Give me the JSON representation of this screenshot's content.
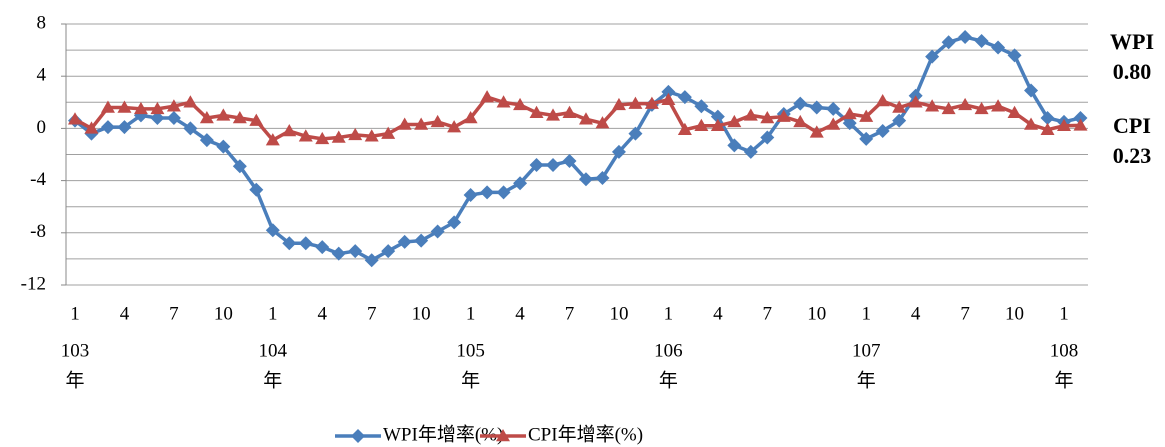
{
  "chart_data": {
    "type": "line",
    "categories": [
      "1",
      null,
      null,
      "4",
      null,
      null,
      "7",
      null,
      null,
      "10",
      null,
      null,
      "1",
      null,
      null,
      "4",
      null,
      null,
      "7",
      null,
      null,
      "10",
      null,
      null,
      "1",
      null,
      null,
      "4",
      null,
      null,
      "7",
      null,
      null,
      "10",
      null,
      null,
      "1",
      null,
      null,
      "4",
      null,
      null,
      "7",
      null,
      null,
      "10",
      null,
      null,
      "1",
      null,
      null,
      "4",
      null,
      null,
      "7",
      null,
      null,
      "10",
      null,
      null,
      "1",
      null
    ],
    "year_labels": [
      "103",
      "104",
      "105",
      "106",
      "107",
      "108"
    ],
    "year_unit": "年",
    "series": [
      {
        "name": "WPI年增率(%)",
        "color": "#4a7ebb",
        "marker": "diamond",
        "values": [
          0.6,
          -0.4,
          0.1,
          0.1,
          1.0,
          0.8,
          0.8,
          0.0,
          -0.9,
          -1.4,
          -2.9,
          -4.7,
          -7.8,
          -8.8,
          -8.8,
          -9.1,
          -9.6,
          -9.4,
          -10.1,
          -9.4,
          -8.7,
          -8.6,
          -7.9,
          -7.2,
          -5.1,
          -4.9,
          -4.9,
          -4.2,
          -2.8,
          -2.8,
          -2.5,
          -3.9,
          -3.8,
          -1.8,
          -0.4,
          1.8,
          2.8,
          2.4,
          1.7,
          0.9,
          -1.3,
          -1.8,
          -0.7,
          1.1,
          1.9,
          1.6,
          1.5,
          0.4,
          -0.8,
          -0.2,
          0.6,
          2.5,
          5.5,
          6.6,
          7.0,
          6.7,
          6.2,
          5.6,
          2.9,
          0.8,
          0.5,
          0.8
        ]
      },
      {
        "name": "CPI年增率(%)",
        "color": "#be4b48",
        "marker": "triangle",
        "values": [
          0.7,
          0.0,
          1.6,
          1.6,
          1.5,
          1.5,
          1.7,
          2.0,
          0.8,
          1.0,
          0.8,
          0.6,
          -0.9,
          -0.2,
          -0.6,
          -0.8,
          -0.7,
          -0.5,
          -0.6,
          -0.4,
          0.3,
          0.3,
          0.5,
          0.1,
          0.8,
          2.4,
          2.0,
          1.8,
          1.2,
          1.0,
          1.2,
          0.7,
          0.4,
          1.8,
          1.9,
          1.9,
          2.2,
          -0.1,
          0.2,
          0.2,
          0.5,
          1.0,
          0.8,
          0.9,
          0.5,
          -0.3,
          0.3,
          1.1,
          0.9,
          2.1,
          1.6,
          2.0,
          1.7,
          1.5,
          1.8,
          1.5,
          1.7,
          1.2,
          0.3,
          -0.1,
          0.2,
          0.23
        ]
      }
    ],
    "ylim": [
      -12,
      8
    ],
    "yticks": [
      8,
      4,
      0,
      -4,
      -8,
      -12
    ],
    "minor_yticks": [
      6,
      2,
      -2,
      -6,
      -10
    ],
    "grid": true,
    "annotations": [
      {
        "text": "WPI",
        "value": "0.80"
      },
      {
        "text": "CPI",
        "value": "0.23"
      }
    ],
    "legend": "bottom"
  }
}
